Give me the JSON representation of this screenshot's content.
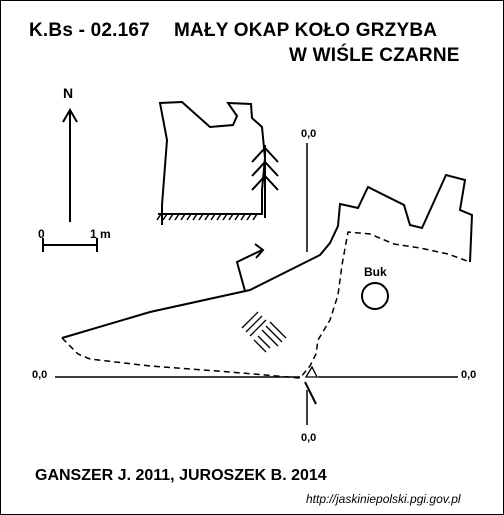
{
  "title": {
    "code": "K.Bs - 02.167",
    "name_line1": "MAŁY OKAP KOŁO GRZYBA",
    "name_line2": "W WIŚLE CZARNE"
  },
  "north_label": "N",
  "scale": {
    "start": "0",
    "end": "1 m"
  },
  "labels": {
    "elev_top": "0,0",
    "elev_left": "0,0",
    "elev_right": "0,0",
    "elev_bottom": "0,0",
    "tree": "Buk"
  },
  "credits": "GANSZER J. 2011,  JUROSZEK B. 2014",
  "url": "http://jaskiniepolski.pgi.gov.pl"
}
